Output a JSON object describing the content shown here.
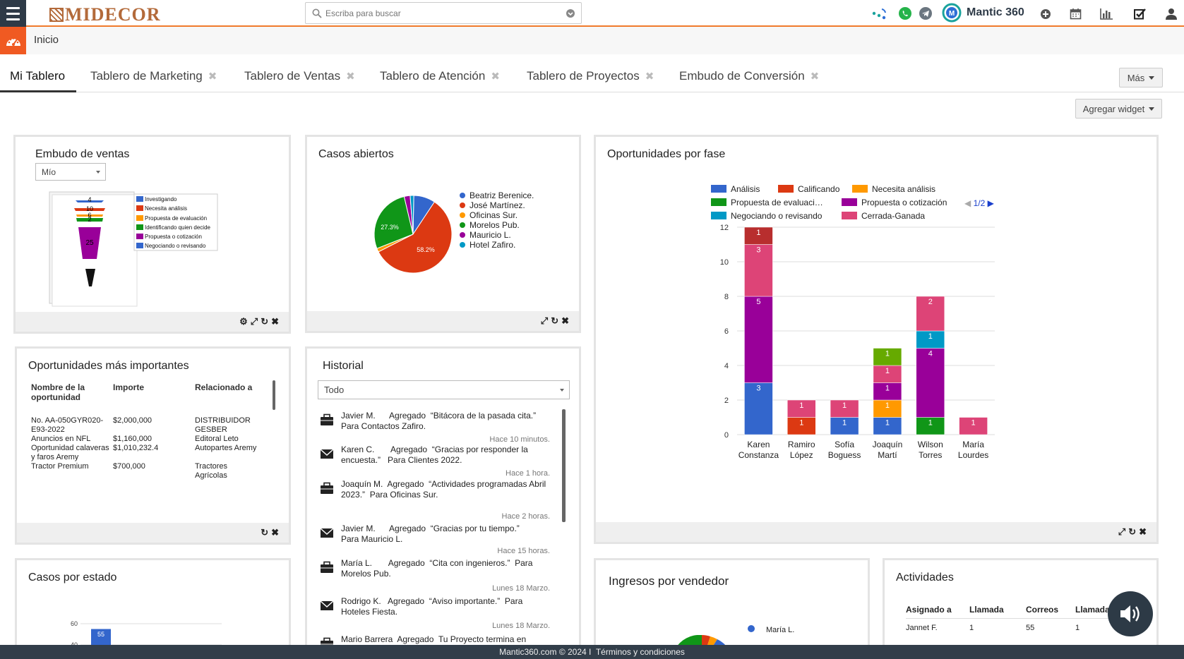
{
  "brand": {
    "logo_text": "MIDECOR",
    "product": "Mantic 360"
  },
  "search": {
    "placeholder": "Escriba para buscar"
  },
  "breadcrumb": {
    "home": "Inicio"
  },
  "tabs": [
    {
      "label": "Mi Tablero",
      "active": true
    },
    {
      "label": "Tablero de Marketing"
    },
    {
      "label": "Tablero de Ventas"
    },
    {
      "label": "Tablero de Atención"
    },
    {
      "label": "Tablero de Proyectos"
    },
    {
      "label": "Embudo de Conversión"
    }
  ],
  "more_button": "Más",
  "add_widget_button": "Agregar widget",
  "embudo": {
    "title": "Embudo de ventas",
    "filter": "Mío",
    "legend": [
      {
        "label": "Investigando",
        "color": "#3366cc"
      },
      {
        "label": "Necesita análisis",
        "color": "#dc3912"
      },
      {
        "label": "Propuesta de evaluación",
        "color": "#ff9900"
      },
      {
        "label": "Identificando quien decide",
        "color": "#109618"
      },
      {
        "label": "Propuesta o cotización",
        "color": "#990099"
      },
      {
        "label": "Negociando o revisando",
        "color": "#3366cc"
      }
    ],
    "labels": [
      "4",
      "10",
      "6",
      "2",
      "25"
    ]
  },
  "casos": {
    "title": "Casos abiertos",
    "chart_data": {
      "type": "pie",
      "slices": [
        {
          "name": "Beatriz Berenice.",
          "value": 9.0,
          "color": "#3366cc"
        },
        {
          "name": "José Martínez.",
          "value": 58.2,
          "color": "#dc3912"
        },
        {
          "name": "Oficinas Sur.",
          "value": 1.5,
          "color": "#ff9900"
        },
        {
          "name": "Morelos Pub.",
          "value": 27.3,
          "color": "#109618"
        },
        {
          "name": "Mauricio L.",
          "value": 2.5,
          "color": "#990099"
        },
        {
          "name": "Hotel Zafiro.",
          "value": 1.5,
          "color": "#0099c6"
        }
      ],
      "labels": [
        "58.2%",
        "27.3%"
      ]
    }
  },
  "oportunidades_fase": {
    "title": "Oportunidades por fase",
    "pager": "1/2",
    "chart_data": {
      "type": "bar",
      "stacked": true,
      "categories": [
        "Karen Constanza",
        "Ramiro López",
        "Sofía Boguess",
        "Joaquín Martí",
        "Wilson Torres",
        "María Lourdes"
      ],
      "category_lines": [
        [
          "Karen",
          "Constanza"
        ],
        [
          "Ramiro",
          "López"
        ],
        [
          "Sofía",
          "Boguess"
        ],
        [
          "Joaquín",
          "Martí"
        ],
        [
          "Wilson",
          "Torres"
        ],
        [
          "María",
          "Lourdes"
        ]
      ],
      "ylim": [
        0,
        12
      ],
      "yticks": [
        0,
        2,
        4,
        6,
        8,
        10,
        12
      ],
      "series": [
        {
          "name": "Análisis",
          "color": "#3366cc",
          "values": [
            3,
            0,
            1,
            1,
            0,
            0
          ]
        },
        {
          "name": "Calificando",
          "color": "#dc3912",
          "values": [
            0,
            1,
            0,
            0,
            0,
            0
          ]
        },
        {
          "name": "Necesita análisis",
          "color": "#ff9900",
          "values": [
            0,
            0,
            0,
            1,
            0,
            0
          ]
        },
        {
          "name": "Propuesta de evaluaci…",
          "color": "#109618",
          "values": [
            0,
            0,
            0,
            0,
            1,
            0
          ]
        },
        {
          "name": "Propuesta o cotización",
          "color": "#990099",
          "values": [
            5,
            0,
            0,
            1,
            4,
            0
          ]
        },
        {
          "name": "Negociando o revisando",
          "color": "#0099c6",
          "values": [
            0,
            0,
            0,
            0,
            1,
            0
          ]
        },
        {
          "name": "Cerrada-Ganada",
          "color": "#dd4477",
          "values": [
            3,
            1,
            1,
            1,
            2,
            1
          ]
        },
        {
          "name": "",
          "color": "#b82e2e",
          "values": [
            1,
            0,
            0,
            0,
            0,
            0
          ]
        },
        {
          "name": "",
          "color": "#66aa00",
          "values": [
            0,
            0,
            0,
            1,
            0,
            0
          ]
        }
      ]
    }
  },
  "oportunidades_top": {
    "title": "Oportunidades más importantes",
    "headers": [
      "Nombre de la oportunidad",
      "Importe",
      "Relacionado a"
    ],
    "rows": [
      [
        "No. AA-050GYR020-E93-2022",
        "$2,000,000",
        "DISTRIBUIDOR GESBER"
      ],
      [
        "Anuncios en NFL",
        "$1,160,000",
        "Editoral Leto"
      ],
      [
        "Oportunidad calaveras y faros Aremy",
        "$1,010,232.4",
        "Autopartes Aremy"
      ],
      [
        "Tractor Premium",
        "$700,000",
        "Tractores Agrícolas"
      ]
    ]
  },
  "historial": {
    "title": "Historial",
    "filter": "Todo",
    "items": [
      {
        "icon": "briefcase",
        "text": "Javier M.      Agregado  “Bitácora de la pasada cita.”          Para Contactos Zafiro.",
        "time": "Hace 10 minutos."
      },
      {
        "icon": "envelope",
        "text": "Karen C.       Agregado  “Gracias por responder la encuesta.”   Para Clientes 2022.",
        "time": "Hace 1 hora."
      },
      {
        "icon": "briefcase",
        "text": "Joaquín M.  Agregado  “Actividades programadas Abril 2023.”  Para Oficinas Sur.",
        "time": "Hace 2 horas."
      },
      {
        "icon": "envelope",
        "text": "Javier M.      Agregado  “Gracias por tu tiempo.”       Para Mauricio L.",
        "time": "Hace 15 horas."
      },
      {
        "icon": "briefcase",
        "text": "María L.       Agregado  “Cita con ingenieros.”  Para Morelos Pub.",
        "time": "Lunes 18 Marzo."
      },
      {
        "icon": "envelope",
        "text": "Rodrigo K.   Agregado  “Aviso importante.”  Para Hoteles Fiesta.",
        "time": "Lunes 18 Marzo."
      },
      {
        "icon": "briefcase",
        "text": "Mario Barrera  Agregado  Tu Proyecto termina en",
        "time": ""
      }
    ]
  },
  "casos_estado": {
    "title": "Casos por estado",
    "chart_data": {
      "type": "bar",
      "yticks": [
        60,
        40
      ],
      "bar_value": 55,
      "bar_label": "55",
      "color": "#3366cc"
    }
  },
  "ingresos": {
    "title": "Ingresos por vendedor",
    "legend": [
      {
        "name": "María L.",
        "color": "#3366cc"
      }
    ]
  },
  "actividades": {
    "title": "Actividades",
    "headers": [
      "Asignado a",
      "Llamada",
      "Correos",
      "Llamada a"
    ],
    "rows": [
      [
        "Jannet F.",
        "1",
        "55",
        "1"
      ]
    ]
  },
  "footer": {
    "copyright": "Mantic360.com © 2024 I",
    "terms": "Términos y condiciones"
  }
}
